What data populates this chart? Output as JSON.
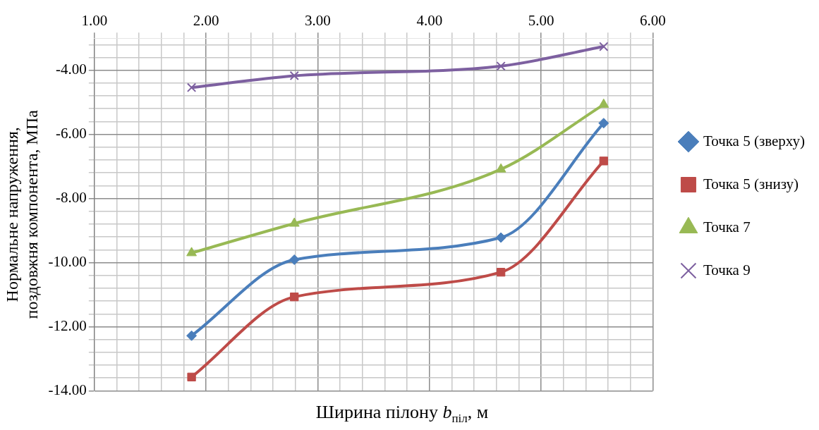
{
  "chart_data": {
    "type": "line",
    "xlabel": "Ширина пілону b$_{піл}$, м",
    "ylabel": "Нормальне напруження, поздовжня компонента, МПа",
    "x": [
      1.87,
      2.79,
      4.64,
      5.56
    ],
    "series": [
      {
        "name": "Точка 5 (зверху)",
        "color": "#4a7ebb",
        "marker": "diamond",
        "values": [
          -12.28,
          -9.91,
          -9.22,
          -5.65
        ]
      },
      {
        "name": "Точка 5 (знизу)",
        "color": "#be4b48",
        "marker": "square",
        "values": [
          -13.57,
          -11.07,
          -10.3,
          -6.83
        ]
      },
      {
        "name": "Точка 7",
        "color": "#98b954",
        "marker": "triangle",
        "values": [
          -9.7,
          -8.78,
          -7.09,
          -5.07
        ]
      },
      {
        "name": "Точка 9",
        "color": "#7d60a0",
        "marker": "cross",
        "values": [
          -4.54,
          -4.17,
          -3.87,
          -3.26
        ]
      }
    ],
    "xlim": [
      1,
      6
    ],
    "xticks": [
      {
        "value": 1,
        "label": "1.00"
      },
      {
        "value": 1.2,
        "label": null
      },
      {
        "value": 1.4,
        "label": null
      },
      {
        "value": 1.6,
        "label": null
      },
      {
        "value": 1.8,
        "label": null
      },
      {
        "value": 2,
        "label": "2.00"
      },
      {
        "value": 2.2,
        "label": null
      },
      {
        "value": 2.4,
        "label": null
      },
      {
        "value": 2.6,
        "label": null
      },
      {
        "value": 2.8,
        "label": null
      },
      {
        "value": 3,
        "label": "3.00"
      },
      {
        "value": 3.2,
        "label": null
      },
      {
        "value": 3.4,
        "label": null
      },
      {
        "value": 3.6,
        "label": null
      },
      {
        "value": 3.8,
        "label": null
      },
      {
        "value": 4,
        "label": "4.00"
      },
      {
        "value": 4.2,
        "label": null
      },
      {
        "value": 4.4,
        "label": null
      },
      {
        "value": 4.6,
        "label": null
      },
      {
        "value": 4.8,
        "label": null
      },
      {
        "value": 5,
        "label": "5.00"
      },
      {
        "value": 5.2,
        "label": null
      },
      {
        "value": 5.4,
        "label": null
      },
      {
        "value": 5.6,
        "label": null
      },
      {
        "value": 5.8,
        "label": null
      },
      {
        "value": 6,
        "label": "6.00"
      }
    ],
    "ylim": [
      -14,
      -3
    ],
    "yticks": [
      {
        "value": -14,
        "label": "-14.00"
      },
      {
        "value": -13.6,
        "label": null
      },
      {
        "value": -13.2,
        "label": null
      },
      {
        "value": -12.8,
        "label": null
      },
      {
        "value": -12.4,
        "label": null
      },
      {
        "value": -12,
        "label": "-12.00"
      },
      {
        "value": -11.6,
        "label": null
      },
      {
        "value": -11.2,
        "label": null
      },
      {
        "value": -10.8,
        "label": null
      },
      {
        "value": -10.4,
        "label": null
      },
      {
        "value": -10,
        "label": "-10.00"
      },
      {
        "value": -9.6,
        "label": null
      },
      {
        "value": -9.2,
        "label": null
      },
      {
        "value": -8.8,
        "label": null
      },
      {
        "value": -8.4,
        "label": null
      },
      {
        "value": -8,
        "label": "-8.00"
      },
      {
        "value": -7.6,
        "label": null
      },
      {
        "value": -7.2,
        "label": null
      },
      {
        "value": -6.8,
        "label": null
      },
      {
        "value": -6.4,
        "label": null
      },
      {
        "value": -6,
        "label": "-6.00"
      },
      {
        "value": -5.6,
        "label": null
      },
      {
        "value": -5.2,
        "label": null
      },
      {
        "value": -4.8,
        "label": null
      },
      {
        "value": -4.4,
        "label": null
      },
      {
        "value": -4,
        "label": "-4.00"
      },
      {
        "value": -3.6,
        "label": null
      },
      {
        "value": -3.2,
        "label": null
      }
    ],
    "grid": true,
    "legend": "right"
  }
}
